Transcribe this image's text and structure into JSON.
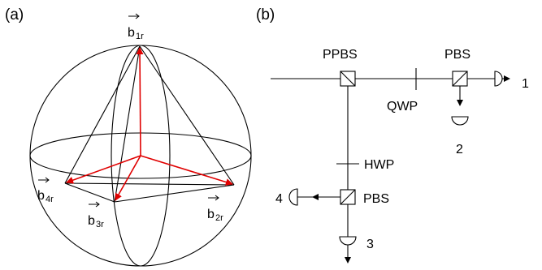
{
  "panel_a": {
    "label": "(a)",
    "vectors": [
      {
        "base": "b",
        "sub": "1r"
      },
      {
        "base": "b",
        "sub": "2r"
      },
      {
        "base": "b",
        "sub": "3r"
      },
      {
        "base": "b",
        "sub": "4r"
      }
    ]
  },
  "panel_b": {
    "label": "(b)",
    "components": {
      "ppbs": "PPBS",
      "pbs_top": "PBS",
      "qwp": "QWP",
      "hwp": "HWP",
      "pbs_bottom": "PBS"
    },
    "detectors": [
      "1",
      "2",
      "3",
      "4"
    ]
  },
  "colors": {
    "ink": "#000000",
    "vector": "#e00000"
  }
}
